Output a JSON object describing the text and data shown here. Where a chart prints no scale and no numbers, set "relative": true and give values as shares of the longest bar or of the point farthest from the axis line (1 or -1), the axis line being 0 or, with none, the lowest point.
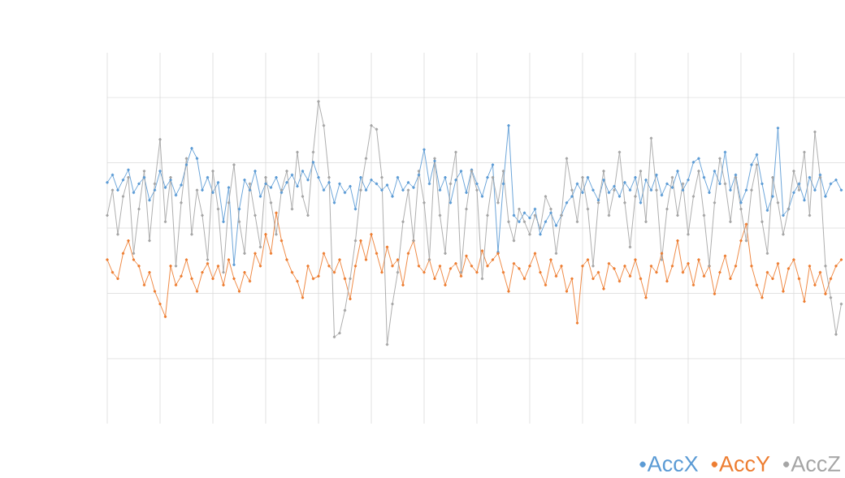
{
  "chart_data": {
    "type": "line",
    "relative": true,
    "grid": true,
    "legend": "bottom right",
    "marker": "circle",
    "tick_labels": false,
    "categories": [
      null,
      null,
      null,
      null,
      null,
      null,
      null,
      null,
      null,
      null,
      null,
      null,
      null,
      null,
      null,
      null,
      null,
      null,
      null,
      null,
      null,
      null,
      null,
      null,
      null,
      null,
      null,
      null,
      null,
      null,
      null,
      null,
      null,
      null,
      null,
      null,
      null,
      null,
      null,
      null,
      null,
      null,
      null,
      null,
      null,
      null,
      null,
      null,
      null,
      null,
      null,
      null,
      null,
      null,
      null,
      null,
      null,
      null,
      null,
      null,
      null,
      null,
      null,
      null,
      null,
      null,
      null,
      null,
      null,
      null,
      null,
      null,
      null,
      null,
      null,
      null,
      null,
      null,
      null,
      null,
      null,
      null,
      null,
      null,
      null,
      null,
      null,
      null,
      null,
      null,
      null,
      null,
      null,
      null,
      null,
      null,
      null,
      null,
      null,
      null,
      null,
      null,
      null,
      null,
      null,
      null,
      null,
      null,
      null,
      null,
      null,
      null,
      null,
      null,
      null,
      null,
      null,
      null,
      null,
      null,
      null,
      null,
      null,
      null,
      null,
      null,
      null,
      null,
      null,
      null,
      null,
      null,
      null,
      null,
      null,
      null,
      null,
      null,
      null,
      null
    ],
    "series": [
      {
        "name": "AccX",
        "color": "#5b9bd5",
        "values": [
          0.36,
          0.42,
          0.3,
          0.38,
          0.46,
          0.28,
          0.35,
          0.4,
          0.22,
          0.3,
          0.45,
          0.32,
          0.38,
          0.26,
          0.34,
          0.5,
          0.63,
          0.55,
          0.3,
          0.4,
          0.28,
          0.36,
          0.05,
          0.32,
          -0.29,
          0.15,
          0.38,
          0.3,
          0.45,
          0.25,
          0.35,
          0.32,
          0.4,
          0.28,
          0.36,
          0.42,
          0.33,
          0.45,
          0.38,
          0.52,
          0.4,
          0.3,
          0.36,
          0.2,
          0.35,
          0.28,
          0.33,
          0.15,
          0.4,
          0.3,
          0.38,
          0.35,
          0.3,
          0.34,
          0.25,
          0.4,
          0.3,
          0.36,
          0.32,
          0.42,
          0.62,
          0.35,
          0.53,
          0.3,
          0.4,
          0.2,
          0.38,
          0.45,
          0.28,
          0.46,
          0.35,
          0.25,
          0.4,
          0.5,
          -0.19,
          0.35,
          0.81,
          0.1,
          0.05,
          0.12,
          0.08,
          0.15,
          -0.05,
          0.05,
          0.12,
          0.02,
          0.1,
          0.2,
          0.25,
          0.35,
          0.28,
          0.4,
          0.3,
          0.22,
          0.38,
          0.28,
          0.33,
          0.25,
          0.36,
          0.3,
          0.4,
          0.2,
          0.38,
          0.3,
          0.42,
          0.26,
          0.35,
          0.32,
          0.45,
          0.3,
          0.38,
          0.52,
          0.55,
          0.4,
          0.28,
          0.45,
          0.35,
          0.6,
          0.3,
          0.42,
          0.2,
          0.3,
          0.5,
          0.58,
          0.35,
          0.14,
          0.25,
          0.79,
          0.1,
          0.15,
          0.28,
          0.35,
          0.22,
          0.4,
          0.3,
          0.42,
          0.25,
          0.35,
          0.38,
          0.3
        ]
      },
      {
        "name": "AccY",
        "color": "#ed7d31",
        "values": [
          -0.25,
          -0.35,
          -0.4,
          -0.2,
          -0.1,
          -0.25,
          -0.3,
          -0.45,
          -0.35,
          -0.5,
          -0.6,
          -0.7,
          -0.3,
          -0.45,
          -0.38,
          -0.25,
          -0.4,
          -0.5,
          -0.35,
          -0.28,
          -0.4,
          -0.3,
          -0.45,
          -0.25,
          -0.4,
          -0.5,
          -0.35,
          -0.42,
          -0.2,
          -0.3,
          -0.05,
          -0.2,
          0.12,
          -0.1,
          -0.25,
          -0.35,
          -0.42,
          -0.55,
          -0.3,
          -0.4,
          -0.38,
          -0.2,
          -0.3,
          -0.35,
          -0.25,
          -0.4,
          -0.56,
          -0.3,
          -0.1,
          -0.25,
          -0.05,
          -0.2,
          -0.35,
          -0.15,
          -0.3,
          -0.25,
          -0.45,
          -0.2,
          -0.1,
          -0.3,
          -0.35,
          -0.25,
          -0.4,
          -0.3,
          -0.45,
          -0.32,
          -0.28,
          -0.38,
          -0.22,
          -0.3,
          -0.35,
          -0.18,
          -0.3,
          -0.25,
          -0.2,
          -0.35,
          -0.5,
          -0.28,
          -0.32,
          -0.4,
          -0.3,
          -0.2,
          -0.35,
          -0.45,
          -0.25,
          -0.38,
          -0.3,
          -0.5,
          -0.4,
          -0.75,
          -0.3,
          -0.25,
          -0.4,
          -0.35,
          -0.48,
          -0.28,
          -0.32,
          -0.42,
          -0.3,
          -0.38,
          -0.25,
          -0.4,
          -0.55,
          -0.3,
          -0.35,
          -0.2,
          -0.42,
          -0.3,
          -0.1,
          -0.35,
          -0.28,
          -0.45,
          -0.25,
          -0.38,
          -0.3,
          -0.52,
          -0.35,
          -0.22,
          -0.4,
          -0.3,
          -0.1,
          0.03,
          -0.3,
          -0.45,
          -0.55,
          -0.35,
          -0.4,
          -0.28,
          -0.5,
          -0.32,
          -0.25,
          -0.4,
          -0.58,
          -0.3,
          -0.45,
          -0.35,
          -0.52,
          -0.4,
          -0.3,
          -0.25
        ]
      },
      {
        "name": "AccZ",
        "color": "#a5a5a5",
        "values": [
          0.1,
          0.3,
          -0.05,
          0.25,
          0.4,
          -0.2,
          0.15,
          0.45,
          -0.1,
          0.35,
          0.7,
          0.05,
          0.4,
          -0.3,
          0.2,
          0.55,
          -0.05,
          0.3,
          0.1,
          -0.25,
          0.45,
          0.15,
          -0.35,
          0.2,
          0.5,
          0.05,
          -0.2,
          0.35,
          0.1,
          -0.15,
          0.4,
          0.2,
          -0.05,
          0.3,
          0.45,
          0.15,
          0.6,
          0.25,
          0.1,
          0.6,
          1.0,
          0.81,
          0.4,
          -0.86,
          -0.83,
          -0.65,
          -0.4,
          -0.1,
          0.3,
          0.55,
          0.81,
          0.78,
          0.4,
          -0.92,
          -0.6,
          -0.35,
          0.05,
          0.3,
          -0.1,
          0.45,
          0.2,
          -0.25,
          0.55,
          0.1,
          -0.2,
          0.35,
          0.6,
          -0.35,
          0.15,
          0.45,
          0.3,
          -0.4,
          0.1,
          0.4,
          0.2,
          0.45,
          0.05,
          -0.1,
          0.15,
          0.05,
          -0.05,
          0.1,
          0.0,
          0.25,
          0.15,
          -0.2,
          0.1,
          0.55,
          0.3,
          0.05,
          0.4,
          0.15,
          -0.3,
          0.2,
          0.45,
          0.1,
          0.3,
          0.6,
          0.2,
          -0.15,
          0.25,
          0.45,
          0.05,
          0.71,
          0.3,
          -0.25,
          0.15,
          0.4,
          0.1,
          0.35,
          -0.05,
          0.25,
          0.45,
          0.1,
          -0.3,
          0.2,
          0.55,
          0.35,
          0.05,
          0.4,
          0.15,
          -0.1,
          0.3,
          0.5,
          0.05,
          -0.2,
          0.4,
          0.2,
          -0.05,
          0.15,
          0.45,
          0.3,
          0.6,
          0.1,
          0.76,
          0.4,
          -0.3,
          -0.55,
          -0.84,
          -0.6
        ]
      }
    ]
  }
}
